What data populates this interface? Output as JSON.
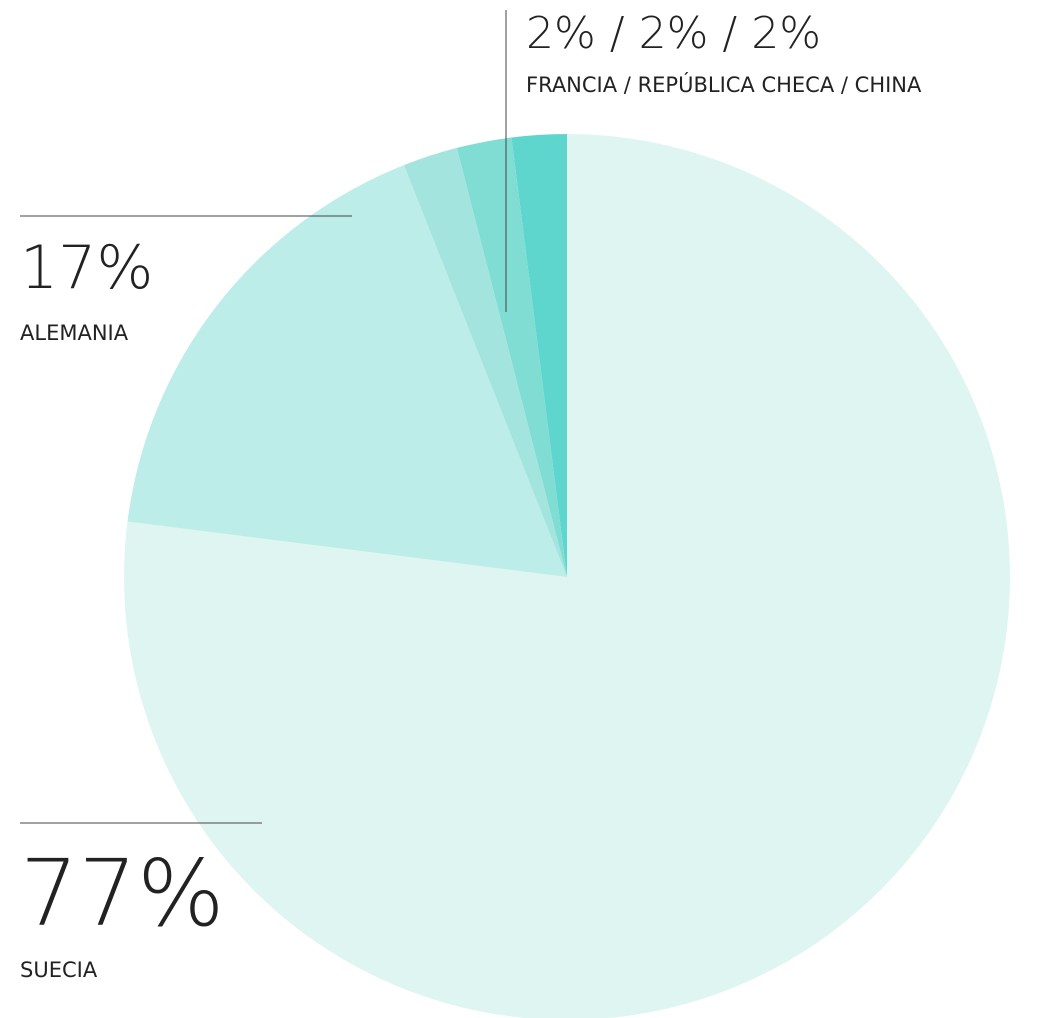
{
  "chart_data": {
    "type": "pie",
    "categories": [
      "SUECIA",
      "ALEMANIA",
      "FRANCIA",
      "REPÚBLICA CHECA",
      "CHINA"
    ],
    "values": [
      77,
      17,
      2,
      2,
      2
    ],
    "value_labels": [
      "77%",
      "17%",
      "2%",
      "2%",
      "2%"
    ],
    "colors": [
      "#dff5f2",
      "#bdede8",
      "#a3e5de",
      "#80ddd4",
      "#5fd6cd"
    ],
    "label_separator": " / "
  }
}
